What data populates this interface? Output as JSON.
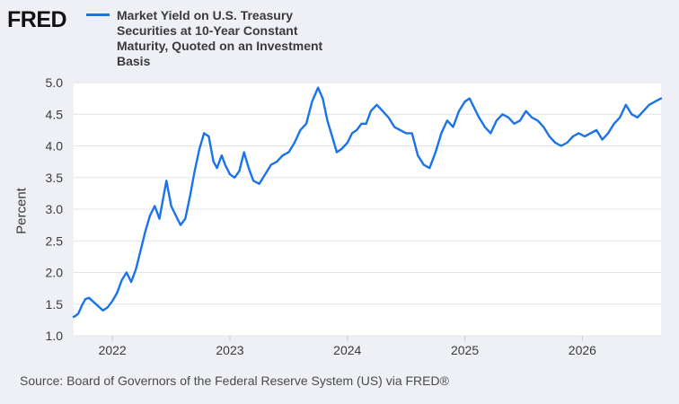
{
  "header": {
    "logo_text": "FRED"
  },
  "legend": {
    "series_label": "Market Yield on U.S. Treasury Securities at 10-Year Constant Maturity, Quoted on an Investment Basis",
    "color": "#1a73e8"
  },
  "footer": {
    "source": "Source: Board of Governors of the Federal Reserve System (US) via FRED®"
  },
  "chart_data": {
    "type": "line",
    "title": "",
    "xlabel": "",
    "ylabel": "Percent",
    "xlim": [
      2021.67,
      2026.67
    ],
    "ylim": [
      1.0,
      5.0
    ],
    "yticks": [
      "1.0",
      "1.5",
      "2.0",
      "2.5",
      "3.0",
      "3.5",
      "4.0",
      "4.5",
      "5.0"
    ],
    "xticks": [
      "2022",
      "2023",
      "2024",
      "2025",
      "2026"
    ],
    "grid": true,
    "line_color": "#1a73e8",
    "series": [
      {
        "name": "Market Yield on U.S. Treasury Securities at 10-Year Constant Maturity, Quoted on an Investment Basis",
        "x": [
          2021.67,
          2021.69,
          2021.71,
          2021.74,
          2021.77,
          2021.8,
          2021.83,
          2021.86,
          2021.89,
          2021.92,
          2021.96,
          2022.0,
          2022.04,
          2022.08,
          2022.12,
          2022.16,
          2022.2,
          2022.24,
          2022.28,
          2022.32,
          2022.36,
          2022.4,
          2022.43,
          2022.46,
          2022.5,
          2022.54,
          2022.58,
          2022.62,
          2022.66,
          2022.7,
          2022.74,
          2022.78,
          2022.82,
          2022.86,
          2022.89,
          2022.93,
          2022.96,
          2023.0,
          2023.04,
          2023.08,
          2023.12,
          2023.16,
          2023.2,
          2023.25,
          2023.3,
          2023.35,
          2023.4,
          2023.45,
          2023.5,
          2023.55,
          2023.6,
          2023.65,
          2023.7,
          2023.75,
          2023.79,
          2023.83,
          2023.87,
          2023.91,
          2023.95,
          2024.0,
          2024.04,
          2024.08,
          2024.12,
          2024.16,
          2024.2,
          2024.25,
          2024.3,
          2024.35,
          2024.4,
          2024.45,
          2024.5,
          2024.55,
          2024.6,
          2024.65,
          2024.7,
          2024.75,
          2024.8,
          2024.85,
          2024.9,
          2024.95,
          2025.0,
          2025.04,
          2025.08,
          2025.12,
          2025.17,
          2025.22,
          2025.27,
          2025.32,
          2025.37,
          2025.42,
          2025.47,
          2025.52,
          2025.57,
          2025.62,
          2025.67,
          2025.72,
          2025.77,
          2025.82,
          2025.87,
          2025.92,
          2025.97,
          2026.02,
          2026.07,
          2026.12,
          2026.17,
          2026.22,
          2026.27,
          2026.32,
          2026.37,
          2026.42,
          2026.47,
          2026.52,
          2026.57,
          2026.62,
          2026.67
        ],
        "values": [
          1.3,
          1.32,
          1.35,
          1.48,
          1.58,
          1.6,
          1.55,
          1.5,
          1.45,
          1.4,
          1.45,
          1.55,
          1.68,
          1.88,
          2.0,
          1.85,
          2.05,
          2.35,
          2.65,
          2.9,
          3.05,
          2.85,
          3.15,
          3.45,
          3.05,
          2.9,
          2.75,
          2.85,
          3.2,
          3.6,
          3.95,
          4.2,
          4.15,
          3.75,
          3.65,
          3.85,
          3.7,
          3.55,
          3.5,
          3.6,
          3.9,
          3.65,
          3.45,
          3.4,
          3.55,
          3.7,
          3.75,
          3.85,
          3.9,
          4.05,
          4.25,
          4.35,
          4.7,
          4.92,
          4.75,
          4.4,
          4.15,
          3.9,
          3.95,
          4.05,
          4.2,
          4.25,
          4.35,
          4.35,
          4.55,
          4.65,
          4.55,
          4.45,
          4.3,
          4.25,
          4.2,
          4.2,
          3.85,
          3.7,
          3.65,
          3.9,
          4.2,
          4.4,
          4.3,
          4.55,
          4.7,
          4.75,
          4.6,
          4.45,
          4.3,
          4.2,
          4.4,
          4.5,
          4.45,
          4.35,
          4.4,
          4.55,
          4.45,
          4.4,
          4.3,
          4.15,
          4.05,
          4.0,
          4.05,
          4.15,
          4.2,
          4.15,
          4.2,
          4.25,
          4.1,
          4.2,
          4.35,
          4.45,
          4.65,
          4.5,
          4.45,
          4.55,
          4.65,
          4.7,
          4.75
        ]
      }
    ]
  }
}
